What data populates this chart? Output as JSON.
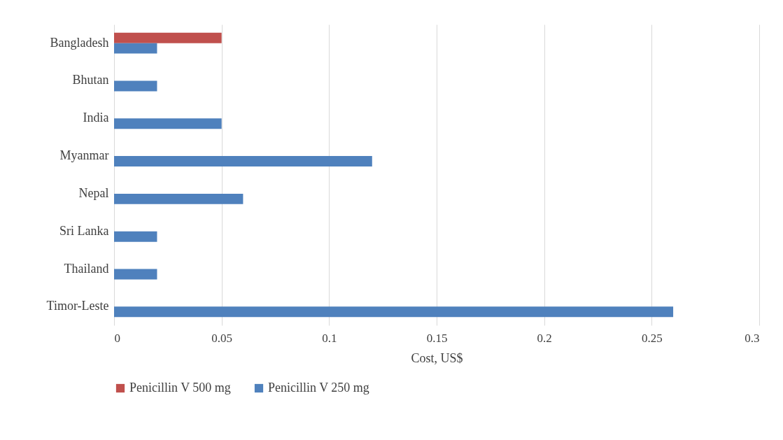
{
  "chart_data": {
    "type": "bar",
    "orientation": "horizontal",
    "xlabel": "Cost, US$",
    "categories": [
      "Bangladesh",
      "Bhutan",
      "India",
      "Myanmar",
      "Nepal",
      "Sri Lanka",
      "Thailand",
      "Timor-Leste"
    ],
    "series": [
      {
        "name": "Penicillin V 500 mg",
        "color": "#c0504d",
        "values": [
          0.05,
          null,
          null,
          null,
          null,
          null,
          null,
          null
        ]
      },
      {
        "name": "Penicillin V 250 mg",
        "color": "#4f81bd",
        "values": [
          0.02,
          0.02,
          0.05,
          0.12,
          0.06,
          0.02,
          0.02,
          0.26
        ]
      }
    ],
    "xlim": [
      0,
      0.3
    ],
    "xticks": [
      0,
      0.05,
      0.1,
      0.15,
      0.2,
      0.25,
      0.3
    ],
    "grid": "x",
    "legend": "bottom"
  }
}
